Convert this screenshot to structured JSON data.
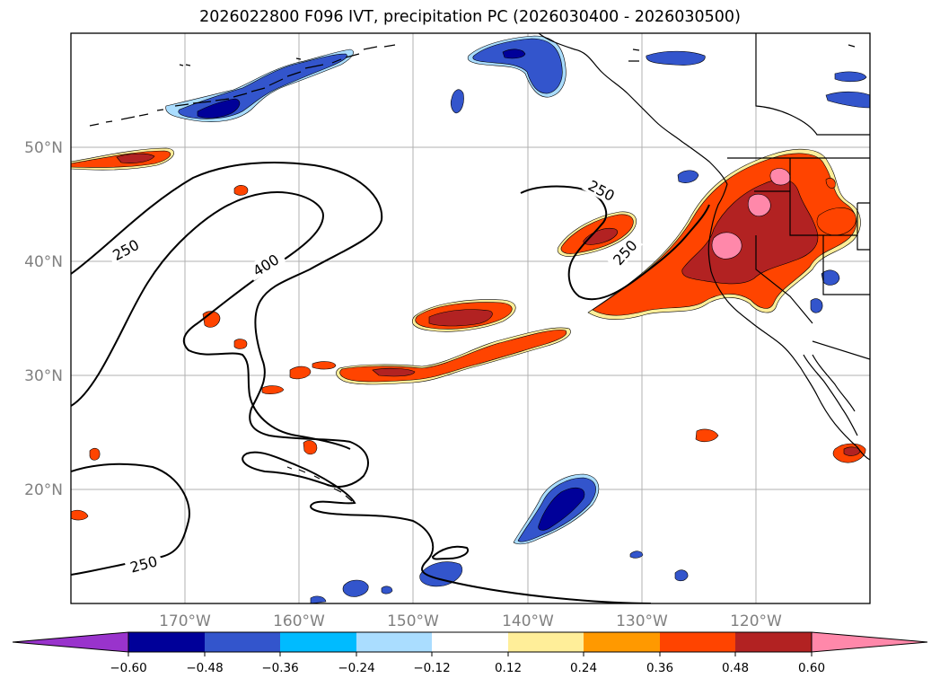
{
  "title": "2026022800 F096 IVT, precipitation PC (2026030400 - 2026030500)",
  "map": {
    "lon_range": [
      -180,
      -110
    ],
    "lat_range": [
      10,
      60
    ],
    "lat_ticks": [
      {
        "value": 20,
        "label": "20°N"
      },
      {
        "value": 30,
        "label": "30°N"
      },
      {
        "value": 40,
        "label": "40°N"
      },
      {
        "value": 50,
        "label": "50°N"
      }
    ],
    "lon_ticks": [
      {
        "value": -170,
        "label": "170°W"
      },
      {
        "value": -160,
        "label": "160°W"
      },
      {
        "value": -150,
        "label": "150°W"
      },
      {
        "value": -140,
        "label": "140°W"
      },
      {
        "value": -130,
        "label": "130°W"
      },
      {
        "value": -120,
        "label": "120°W"
      }
    ],
    "contour_labels": [
      "250",
      "400",
      "250",
      "250",
      "250"
    ]
  },
  "colorbar": {
    "colors": [
      "#9933cc",
      "#000099",
      "#3355cc",
      "#00bbff",
      "#aaddff",
      "#ffffff",
      "#ffee99",
      "#ff9900",
      "#ff4400",
      "#b22222",
      "#ff88aa"
    ],
    "labels": [
      "−0.60",
      "−0.48",
      "−0.36",
      "−0.24",
      "−0.12",
      "0.12",
      "0.24",
      "0.36",
      "0.48",
      "0.60"
    ]
  },
  "colors": {
    "contour": "#000000",
    "coast": "#000000",
    "grid": "#b0b0b0",
    "tick_label": "#808080"
  }
}
